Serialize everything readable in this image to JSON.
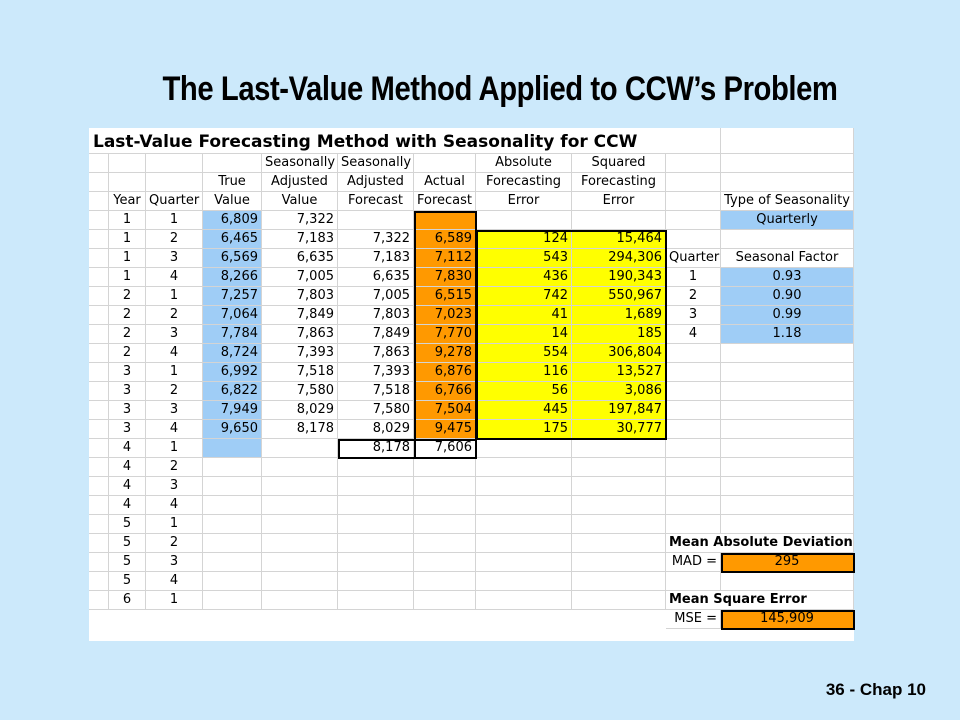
{
  "slide": {
    "title": "The Last-Value Method Applied to CCW’s Problem",
    "footer": "36 - Chap 10"
  },
  "sheet": {
    "title": "Last-Value Forecasting Method with Seasonality for CCW",
    "headers": {
      "row1": [
        "",
        "",
        "",
        "Seasonally",
        "Seasonally",
        "",
        "Absolute",
        "Squared"
      ],
      "row2": [
        "",
        "",
        "True",
        "Adjusted",
        "Adjusted",
        "Actual",
        "Forecasting",
        "Forecasting"
      ],
      "row3": [
        "Year",
        "Quarter",
        "Value",
        "Value",
        "Forecast",
        "Forecast",
        "Error",
        "Error"
      ]
    },
    "rows": [
      [
        "1",
        "1",
        "6,809",
        "7,322",
        "",
        "",
        "",
        ""
      ],
      [
        "1",
        "2",
        "6,465",
        "7,183",
        "7,322",
        "6,589",
        "124",
        "15,464"
      ],
      [
        "1",
        "3",
        "6,569",
        "6,635",
        "7,183",
        "7,112",
        "543",
        "294,306"
      ],
      [
        "1",
        "4",
        "8,266",
        "7,005",
        "6,635",
        "7,830",
        "436",
        "190,343"
      ],
      [
        "2",
        "1",
        "7,257",
        "7,803",
        "7,005",
        "6,515",
        "742",
        "550,967"
      ],
      [
        "2",
        "2",
        "7,064",
        "7,849",
        "7,803",
        "7,023",
        "41",
        "1,689"
      ],
      [
        "2",
        "3",
        "7,784",
        "7,863",
        "7,849",
        "7,770",
        "14",
        "185"
      ],
      [
        "2",
        "4",
        "8,724",
        "7,393",
        "7,863",
        "9,278",
        "554",
        "306,804"
      ],
      [
        "3",
        "1",
        "6,992",
        "7,518",
        "7,393",
        "6,876",
        "116",
        "13,527"
      ],
      [
        "3",
        "2",
        "6,822",
        "7,580",
        "7,518",
        "6,766",
        "56",
        "3,086"
      ],
      [
        "3",
        "3",
        "7,949",
        "8,029",
        "7,580",
        "7,504",
        "445",
        "197,847"
      ],
      [
        "3",
        "4",
        "9,650",
        "8,178",
        "8,029",
        "9,475",
        "175",
        "30,777"
      ],
      [
        "4",
        "1",
        "",
        "",
        "8,178",
        "7,606",
        "",
        ""
      ],
      [
        "4",
        "2",
        "",
        "",
        "",
        "",
        "",
        ""
      ],
      [
        "4",
        "3",
        "",
        "",
        "",
        "",
        "",
        ""
      ],
      [
        "4",
        "4",
        "",
        "",
        "",
        "",
        "",
        ""
      ],
      [
        "5",
        "1",
        "",
        "",
        "",
        "",
        "",
        ""
      ],
      [
        "5",
        "2",
        "",
        "",
        "",
        "",
        "",
        ""
      ],
      [
        "5",
        "3",
        "",
        "",
        "",
        "",
        "",
        ""
      ],
      [
        "5",
        "4",
        "",
        "",
        "",
        "",
        "",
        ""
      ],
      [
        "6",
        "1",
        "",
        "",
        "",
        "",
        "",
        ""
      ]
    ],
    "seasonality": {
      "type_label": "Type of Seasonality",
      "type_value": "Quarterly",
      "quarter_header": "Quarter",
      "factor_header": "Seasonal Factor",
      "factors": [
        {
          "quarter": "1",
          "factor": "0.93"
        },
        {
          "quarter": "2",
          "factor": "0.90"
        },
        {
          "quarter": "3",
          "factor": "0.99"
        },
        {
          "quarter": "4",
          "factor": "1.18"
        }
      ]
    },
    "mad": {
      "heading": "Mean Absolute Deviation",
      "label": "MAD =",
      "value": "295"
    },
    "mse": {
      "heading": "Mean Square Error",
      "label": "MSE =",
      "value": "145,909"
    }
  },
  "colors": {
    "background": "#cce9fb",
    "blue_cells": "#9fcdf6",
    "orange_cells": "#ff9900",
    "yellow_cells": "#ffff00"
  }
}
